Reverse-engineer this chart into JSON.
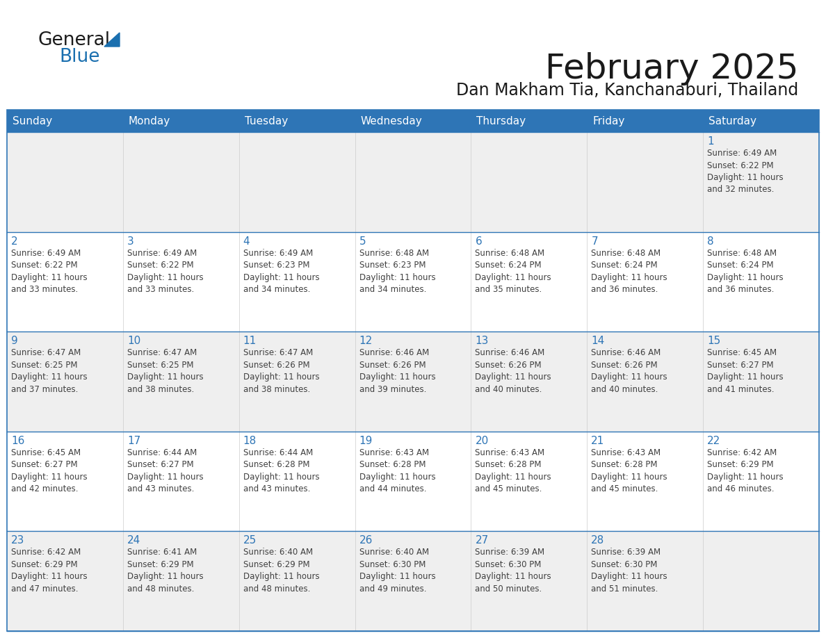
{
  "title": "February 2025",
  "subtitle": "Dan Makham Tia, Kanchanaburi, Thailand",
  "header_bg": "#2E75B6",
  "header_text": "#FFFFFF",
  "cell_bg": "#EFEFEF",
  "cell_bg2": "#FFFFFF",
  "day_number_color": "#2E75B6",
  "text_color": "#404040",
  "line_color": "#2E75B6",
  "days_of_week": [
    "Sunday",
    "Monday",
    "Tuesday",
    "Wednesday",
    "Thursday",
    "Friday",
    "Saturday"
  ],
  "weeks": [
    [
      {
        "day": null,
        "info": null
      },
      {
        "day": null,
        "info": null
      },
      {
        "day": null,
        "info": null
      },
      {
        "day": null,
        "info": null
      },
      {
        "day": null,
        "info": null
      },
      {
        "day": null,
        "info": null
      },
      {
        "day": "1",
        "info": "Sunrise: 6:49 AM\nSunset: 6:22 PM\nDaylight: 11 hours\nand 32 minutes."
      }
    ],
    [
      {
        "day": "2",
        "info": "Sunrise: 6:49 AM\nSunset: 6:22 PM\nDaylight: 11 hours\nand 33 minutes."
      },
      {
        "day": "3",
        "info": "Sunrise: 6:49 AM\nSunset: 6:22 PM\nDaylight: 11 hours\nand 33 minutes."
      },
      {
        "day": "4",
        "info": "Sunrise: 6:49 AM\nSunset: 6:23 PM\nDaylight: 11 hours\nand 34 minutes."
      },
      {
        "day": "5",
        "info": "Sunrise: 6:48 AM\nSunset: 6:23 PM\nDaylight: 11 hours\nand 34 minutes."
      },
      {
        "day": "6",
        "info": "Sunrise: 6:48 AM\nSunset: 6:24 PM\nDaylight: 11 hours\nand 35 minutes."
      },
      {
        "day": "7",
        "info": "Sunrise: 6:48 AM\nSunset: 6:24 PM\nDaylight: 11 hours\nand 36 minutes."
      },
      {
        "day": "8",
        "info": "Sunrise: 6:48 AM\nSunset: 6:24 PM\nDaylight: 11 hours\nand 36 minutes."
      }
    ],
    [
      {
        "day": "9",
        "info": "Sunrise: 6:47 AM\nSunset: 6:25 PM\nDaylight: 11 hours\nand 37 minutes."
      },
      {
        "day": "10",
        "info": "Sunrise: 6:47 AM\nSunset: 6:25 PM\nDaylight: 11 hours\nand 38 minutes."
      },
      {
        "day": "11",
        "info": "Sunrise: 6:47 AM\nSunset: 6:26 PM\nDaylight: 11 hours\nand 38 minutes."
      },
      {
        "day": "12",
        "info": "Sunrise: 6:46 AM\nSunset: 6:26 PM\nDaylight: 11 hours\nand 39 minutes."
      },
      {
        "day": "13",
        "info": "Sunrise: 6:46 AM\nSunset: 6:26 PM\nDaylight: 11 hours\nand 40 minutes."
      },
      {
        "day": "14",
        "info": "Sunrise: 6:46 AM\nSunset: 6:26 PM\nDaylight: 11 hours\nand 40 minutes."
      },
      {
        "day": "15",
        "info": "Sunrise: 6:45 AM\nSunset: 6:27 PM\nDaylight: 11 hours\nand 41 minutes."
      }
    ],
    [
      {
        "day": "16",
        "info": "Sunrise: 6:45 AM\nSunset: 6:27 PM\nDaylight: 11 hours\nand 42 minutes."
      },
      {
        "day": "17",
        "info": "Sunrise: 6:44 AM\nSunset: 6:27 PM\nDaylight: 11 hours\nand 43 minutes."
      },
      {
        "day": "18",
        "info": "Sunrise: 6:44 AM\nSunset: 6:28 PM\nDaylight: 11 hours\nand 43 minutes."
      },
      {
        "day": "19",
        "info": "Sunrise: 6:43 AM\nSunset: 6:28 PM\nDaylight: 11 hours\nand 44 minutes."
      },
      {
        "day": "20",
        "info": "Sunrise: 6:43 AM\nSunset: 6:28 PM\nDaylight: 11 hours\nand 45 minutes."
      },
      {
        "day": "21",
        "info": "Sunrise: 6:43 AM\nSunset: 6:28 PM\nDaylight: 11 hours\nand 45 minutes."
      },
      {
        "day": "22",
        "info": "Sunrise: 6:42 AM\nSunset: 6:29 PM\nDaylight: 11 hours\nand 46 minutes."
      }
    ],
    [
      {
        "day": "23",
        "info": "Sunrise: 6:42 AM\nSunset: 6:29 PM\nDaylight: 11 hours\nand 47 minutes."
      },
      {
        "day": "24",
        "info": "Sunrise: 6:41 AM\nSunset: 6:29 PM\nDaylight: 11 hours\nand 48 minutes."
      },
      {
        "day": "25",
        "info": "Sunrise: 6:40 AM\nSunset: 6:29 PM\nDaylight: 11 hours\nand 48 minutes."
      },
      {
        "day": "26",
        "info": "Sunrise: 6:40 AM\nSunset: 6:30 PM\nDaylight: 11 hours\nand 49 minutes."
      },
      {
        "day": "27",
        "info": "Sunrise: 6:39 AM\nSunset: 6:30 PM\nDaylight: 11 hours\nand 50 minutes."
      },
      {
        "day": "28",
        "info": "Sunrise: 6:39 AM\nSunset: 6:30 PM\nDaylight: 11 hours\nand 51 minutes."
      },
      {
        "day": null,
        "info": null
      }
    ]
  ],
  "logo_general_color": "#1a1a1a",
  "logo_blue_color": "#1a6faf",
  "logo_triangle_color": "#1a6faf"
}
